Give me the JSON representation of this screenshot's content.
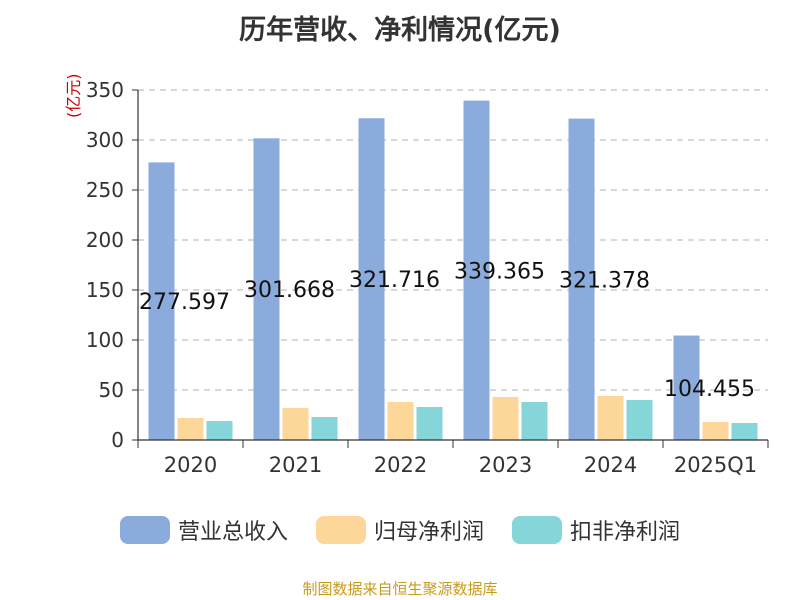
{
  "page": {
    "footer": "制图数据来自恒生聚源数据库"
  },
  "chart_data": {
    "type": "bar",
    "title": "历年营收、净利情况(亿元)",
    "ylabel": "(亿元)",
    "xlabel": "",
    "ylim": [
      0,
      350
    ],
    "yticks": [
      0,
      50,
      100,
      150,
      200,
      250,
      300,
      350
    ],
    "grid": true,
    "legend_position": "bottom",
    "categories": [
      "2020",
      "2021",
      "2022",
      "2023",
      "2024",
      "2025Q1"
    ],
    "series": [
      {
        "name": "营业总收入",
        "color": "#8aabdb",
        "values": [
          277.597,
          301.668,
          321.716,
          339.365,
          321.378,
          104.455
        ],
        "labels": [
          "277.597",
          "301.668",
          "321.716",
          "339.365",
          "321.378",
          "104.455"
        ]
      },
      {
        "name": "归母净利润",
        "color": "#fdd69a",
        "values": [
          22,
          32,
          38,
          43,
          44,
          18
        ]
      },
      {
        "name": "扣非净利润",
        "color": "#85d5d9",
        "values": [
          19,
          23,
          33,
          38,
          40,
          17
        ]
      }
    ]
  }
}
